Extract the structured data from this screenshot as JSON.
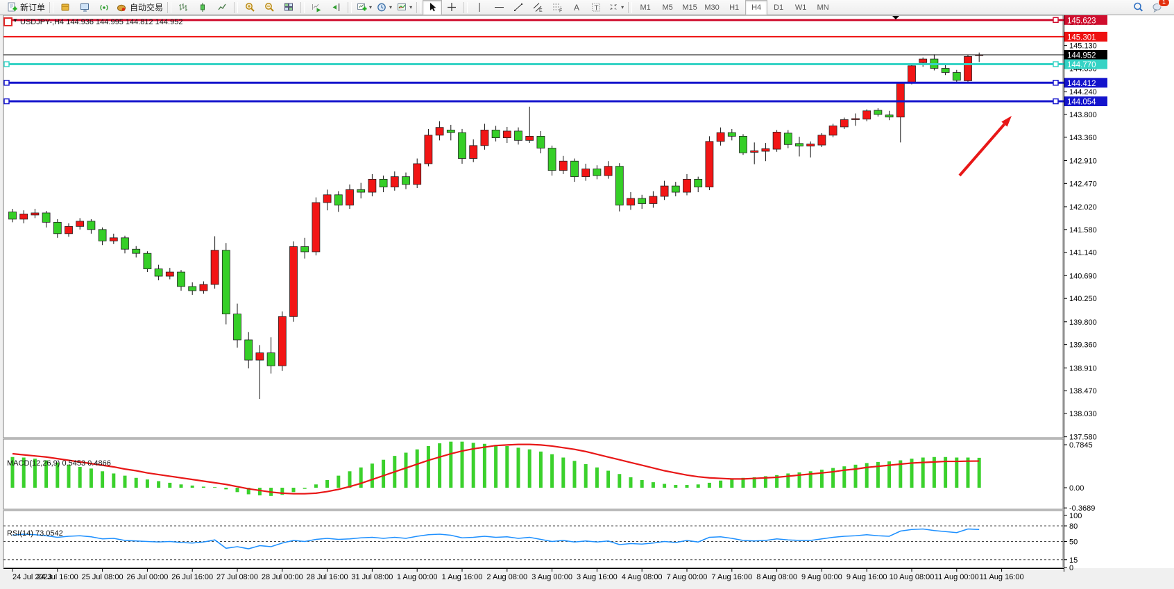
{
  "toolbar": {
    "groups": [
      {
        "name": "order",
        "items": [
          {
            "name": "new-order",
            "icon": "neworder",
            "label": "新订单"
          }
        ]
      },
      {
        "name": "panels",
        "items": [
          {
            "name": "market-watch",
            "icon": "goldbox"
          },
          {
            "name": "data-window",
            "icon": "monitor"
          },
          {
            "name": "signals",
            "icon": "signal"
          },
          {
            "name": "auto-trading",
            "icon": "pot",
            "label": "自动交易"
          }
        ]
      },
      {
        "name": "chart-types",
        "items": [
          {
            "name": "bar-chart",
            "icon": "barchart"
          },
          {
            "name": "candlestick-chart",
            "icon": "candle"
          },
          {
            "name": "line-chart",
            "icon": "linechart"
          }
        ]
      },
      {
        "name": "zoom",
        "items": [
          {
            "name": "zoom-in",
            "icon": "zoomin"
          },
          {
            "name": "zoom-out",
            "icon": "zoomout"
          },
          {
            "name": "tile-windows",
            "icon": "tiles"
          }
        ]
      },
      {
        "name": "scroll",
        "items": [
          {
            "name": "auto-scroll",
            "icon": "autoscroll"
          },
          {
            "name": "chart-shift",
            "icon": "chartshift"
          }
        ]
      },
      {
        "name": "new-objects",
        "items": [
          {
            "name": "new-chart",
            "icon": "newchart",
            "dropdown": true
          },
          {
            "name": "periods",
            "icon": "clock",
            "dropdown": true
          },
          {
            "name": "templates",
            "icon": "template",
            "dropdown": true
          }
        ]
      },
      {
        "name": "cursor-tools",
        "items": [
          {
            "name": "cursor",
            "icon": "cursor",
            "active": true
          },
          {
            "name": "crosshair",
            "icon": "crosshair"
          }
        ]
      },
      {
        "name": "draw-tools",
        "items": [
          {
            "name": "vertical-line",
            "icon": "vline"
          },
          {
            "name": "horizontal-line",
            "icon": "hline"
          },
          {
            "name": "trendline",
            "icon": "trend"
          },
          {
            "name": "equidistant-channel",
            "icon": "channel"
          },
          {
            "name": "fibonacci",
            "icon": "fibo"
          },
          {
            "name": "text",
            "icon": "textA"
          },
          {
            "name": "text-label",
            "icon": "textT"
          },
          {
            "name": "arrows",
            "icon": "stamp",
            "dropdown": true
          }
        ]
      },
      {
        "name": "timeframes",
        "items": [
          {
            "name": "tf-m1",
            "label": "M1"
          },
          {
            "name": "tf-m5",
            "label": "M5"
          },
          {
            "name": "tf-m15",
            "label": "M15"
          },
          {
            "name": "tf-m30",
            "label": "M30"
          },
          {
            "name": "tf-h1",
            "label": "H1"
          },
          {
            "name": "tf-h4",
            "label": "H4",
            "active": true
          },
          {
            "name": "tf-d1",
            "label": "D1"
          },
          {
            "name": "tf-w1",
            "label": "W1"
          },
          {
            "name": "tf-mn",
            "label": "MN"
          }
        ]
      },
      {
        "name": "right",
        "items": [
          {
            "name": "search",
            "icon": "search"
          },
          {
            "name": "chat",
            "icon": "chat",
            "badge": "1"
          }
        ]
      }
    ]
  },
  "chart": {
    "title": "USDJPY-,H4  144.936 144.995 144.812 144.952",
    "title_marker": "▼",
    "macd_label": "MACD(12,26,9) 0.5453 0.4866",
    "rsi_label": "RSI(14) 73.0542"
  },
  "chart_data": {
    "type": "candlestick",
    "symbol": "USDJPY-",
    "timeframe": "H4",
    "start_time": "24 Jul 2023 00:00",
    "current_bar": {
      "open": 144.936,
      "high": 144.995,
      "low": 144.812,
      "close": 144.952
    },
    "colors": {
      "bull": "#f21515",
      "bear": "#35cf27",
      "wick": "#111111",
      "macd_hist": "#3bd12c",
      "macd_signal": "#e81717",
      "rsi_line": "#1e90ff",
      "arrow": "#e81717",
      "bid_line": "#000000"
    },
    "price_ticks": [
      "145.580",
      "145.130",
      "144.690",
      "144.240",
      "143.800",
      "143.360",
      "142.910",
      "142.470",
      "142.020",
      "141.580",
      "141.140",
      "140.690",
      "140.250",
      "139.800",
      "139.360",
      "138.910",
      "138.470",
      "138.030",
      "137.580"
    ],
    "time_labels": [
      "24 Jul 2023",
      "24 Jul 16:00",
      "25 Jul 08:00",
      "26 Jul 00:00",
      "26 Jul 16:00",
      "27 Jul 08:00",
      "28 Jul 00:00",
      "28 Jul 16:00",
      "31 Jul 08:00",
      "1 Aug 00:00",
      "1 Aug 16:00",
      "2 Aug 08:00",
      "3 Aug 00:00",
      "3 Aug 16:00",
      "4 Aug 08:00",
      "7 Aug 00:00",
      "7 Aug 16:00",
      "8 Aug 08:00",
      "9 Aug 00:00",
      "9 Aug 16:00",
      "10 Aug 08:00",
      "11 Aug 00:00",
      "11 Aug 16:00"
    ],
    "hlines": [
      {
        "price": 145.623,
        "label": "145.623",
        "color": "#cf0e2e",
        "width": 3,
        "handles": [
          "right"
        ]
      },
      {
        "price": 145.301,
        "label": "145.301",
        "color": "#ee1111",
        "width": 2,
        "handles": []
      },
      {
        "price": 144.952,
        "label": "144.952",
        "color": "#000000",
        "width": 1,
        "handles": [],
        "role": "current-price"
      },
      {
        "price": 144.77,
        "label": "144.770",
        "color": "#35d3c5",
        "width": 3,
        "handles": [
          "left",
          "right"
        ]
      },
      {
        "price": 144.412,
        "label": "144.412",
        "color": "#1414cc",
        "width": 3,
        "handles": [
          "left",
          "right"
        ]
      },
      {
        "price": 144.054,
        "label": "144.054",
        "color": "#1414cc",
        "width": 3,
        "handles": [
          "left",
          "right"
        ]
      }
    ],
    "candles": [
      [
        141.92,
        141.98,
        141.72,
        141.78
      ],
      [
        141.78,
        141.95,
        141.7,
        141.88
      ],
      [
        141.86,
        141.98,
        141.8,
        141.9
      ],
      [
        141.9,
        141.94,
        141.62,
        141.72
      ],
      [
        141.72,
        141.78,
        141.42,
        141.5
      ],
      [
        141.5,
        141.7,
        141.44,
        141.64
      ],
      [
        141.64,
        141.8,
        141.58,
        141.74
      ],
      [
        141.74,
        141.78,
        141.5,
        141.58
      ],
      [
        141.58,
        141.62,
        141.28,
        141.36
      ],
      [
        141.36,
        141.5,
        141.3,
        141.42
      ],
      [
        141.42,
        141.46,
        141.12,
        141.2
      ],
      [
        141.2,
        141.26,
        141.04,
        141.12
      ],
      [
        141.12,
        141.16,
        140.76,
        140.82
      ],
      [
        140.82,
        140.9,
        140.6,
        140.68
      ],
      [
        140.68,
        140.84,
        140.62,
        140.76
      ],
      [
        140.76,
        140.8,
        140.4,
        140.48
      ],
      [
        140.48,
        140.56,
        140.32,
        140.4
      ],
      [
        140.4,
        140.58,
        140.34,
        140.52
      ],
      [
        140.52,
        141.45,
        140.44,
        141.18
      ],
      [
        141.18,
        141.32,
        139.75,
        139.95
      ],
      [
        139.95,
        140.15,
        139.3,
        139.45
      ],
      [
        139.45,
        139.6,
        138.9,
        139.06
      ],
      [
        139.06,
        139.35,
        138.31,
        139.2
      ],
      [
        139.2,
        139.5,
        138.8,
        138.95
      ],
      [
        138.95,
        140.0,
        138.85,
        139.9
      ],
      [
        139.9,
        141.35,
        139.8,
        141.25
      ],
      [
        141.25,
        141.42,
        141.02,
        141.15
      ],
      [
        141.15,
        142.2,
        141.08,
        142.1
      ],
      [
        142.1,
        142.35,
        141.95,
        142.25
      ],
      [
        142.25,
        142.32,
        141.92,
        142.05
      ],
      [
        142.05,
        142.45,
        141.98,
        142.35
      ],
      [
        142.35,
        142.48,
        142.18,
        142.3
      ],
      [
        142.3,
        142.65,
        142.22,
        142.55
      ],
      [
        142.55,
        142.62,
        142.3,
        142.4
      ],
      [
        142.4,
        142.7,
        142.33,
        142.6
      ],
      [
        142.6,
        142.68,
        142.36,
        142.45
      ],
      [
        142.45,
        142.95,
        142.38,
        142.85
      ],
      [
        142.85,
        143.52,
        142.8,
        143.4
      ],
      [
        143.4,
        143.67,
        143.3,
        143.55
      ],
      [
        143.5,
        143.6,
        143.3,
        143.45
      ],
      [
        143.45,
        143.52,
        142.85,
        142.95
      ],
      [
        142.95,
        143.32,
        142.88,
        143.2
      ],
      [
        143.2,
        143.62,
        143.12,
        143.5
      ],
      [
        143.5,
        143.58,
        143.28,
        143.35
      ],
      [
        143.35,
        143.56,
        143.25,
        143.48
      ],
      [
        143.48,
        143.55,
        143.22,
        143.3
      ],
      [
        143.3,
        143.95,
        143.25,
        143.38
      ],
      [
        143.38,
        143.48,
        143.05,
        143.15
      ],
      [
        143.15,
        143.2,
        142.62,
        142.72
      ],
      [
        142.72,
        143.0,
        142.65,
        142.9
      ],
      [
        142.9,
        142.95,
        142.5,
        142.6
      ],
      [
        142.6,
        142.85,
        142.52,
        142.75
      ],
      [
        142.75,
        142.82,
        142.55,
        142.62
      ],
      [
        142.62,
        142.9,
        142.56,
        142.8
      ],
      [
        142.8,
        142.86,
        141.93,
        142.05
      ],
      [
        142.05,
        142.3,
        141.96,
        142.18
      ],
      [
        142.18,
        142.25,
        141.98,
        142.08
      ],
      [
        142.08,
        142.32,
        142.0,
        142.22
      ],
      [
        142.22,
        142.52,
        142.15,
        142.42
      ],
      [
        142.42,
        142.5,
        142.22,
        142.3
      ],
      [
        142.3,
        142.65,
        142.24,
        142.55
      ],
      [
        142.55,
        142.6,
        142.3,
        142.4
      ],
      [
        142.4,
        143.38,
        142.34,
        143.28
      ],
      [
        143.28,
        143.55,
        143.2,
        143.45
      ],
      [
        143.45,
        143.52,
        143.3,
        143.38
      ],
      [
        143.38,
        143.42,
        143.02,
        143.06
      ],
      [
        143.07,
        143.26,
        142.84,
        143.1
      ],
      [
        143.09,
        143.25,
        142.9,
        143.14
      ],
      [
        143.13,
        143.5,
        143.08,
        143.46
      ],
      [
        143.44,
        143.5,
        143.15,
        143.22
      ],
      [
        143.24,
        143.37,
        142.99,
        143.19
      ],
      [
        143.19,
        143.28,
        142.97,
        143.23
      ],
      [
        143.21,
        143.44,
        143.17,
        143.4
      ],
      [
        143.4,
        143.62,
        143.36,
        143.58
      ],
      [
        143.56,
        143.74,
        143.52,
        143.7
      ],
      [
        143.7,
        143.82,
        143.58,
        143.72
      ],
      [
        143.71,
        143.9,
        143.67,
        143.87
      ],
      [
        143.88,
        143.92,
        143.76,
        143.8
      ],
      [
        143.79,
        143.87,
        143.69,
        143.75
      ],
      [
        143.75,
        144.42,
        143.26,
        144.4
      ],
      [
        144.41,
        144.78,
        144.38,
        144.74
      ],
      [
        144.8,
        144.9,
        144.72,
        144.87
      ],
      [
        144.87,
        144.96,
        144.65,
        144.69
      ],
      [
        144.69,
        144.75,
        144.56,
        144.61
      ],
      [
        144.61,
        144.66,
        144.42,
        144.46
      ],
      [
        144.45,
        144.95,
        144.43,
        144.92
      ],
      [
        144.936,
        144.995,
        144.812,
        144.952
      ]
    ],
    "indicators": {
      "macd": {
        "label": "MACD(12,26,9)",
        "value_main": 0.5453,
        "value_signal": 0.4866,
        "y_ticks": [
          "0.7845",
          "0.00",
          "-0.3689"
        ],
        "histogram": [
          0.56,
          0.55,
          0.53,
          0.5,
          0.46,
          0.42,
          0.38,
          0.35,
          0.3,
          0.26,
          0.22,
          0.18,
          0.15,
          0.12,
          0.09,
          0.06,
          0.04,
          0.02,
          0.01,
          -0.03,
          -0.08,
          -0.12,
          -0.14,
          -0.15,
          -0.13,
          -0.08,
          -0.02,
          0.06,
          0.14,
          0.22,
          0.3,
          0.37,
          0.44,
          0.51,
          0.58,
          0.64,
          0.7,
          0.76,
          0.81,
          0.84,
          0.84,
          0.82,
          0.8,
          0.78,
          0.76,
          0.73,
          0.7,
          0.66,
          0.61,
          0.55,
          0.49,
          0.43,
          0.37,
          0.31,
          0.25,
          0.19,
          0.14,
          0.1,
          0.07,
          0.05,
          0.05,
          0.06,
          0.09,
          0.13,
          0.16,
          0.18,
          0.19,
          0.21,
          0.23,
          0.26,
          0.28,
          0.3,
          0.33,
          0.36,
          0.39,
          0.42,
          0.45,
          0.47,
          0.48,
          0.5,
          0.53,
          0.55,
          0.56,
          0.56,
          0.55,
          0.55,
          0.5453
        ],
        "signal": [
          0.62,
          0.6,
          0.58,
          0.56,
          0.53,
          0.5,
          0.47,
          0.44,
          0.41,
          0.38,
          0.34,
          0.31,
          0.27,
          0.24,
          0.21,
          0.18,
          0.15,
          0.12,
          0.09,
          0.06,
          0.02,
          -0.02,
          -0.05,
          -0.08,
          -0.1,
          -0.11,
          -0.11,
          -0.1,
          -0.07,
          -0.03,
          0.02,
          0.08,
          0.15,
          0.22,
          0.29,
          0.36,
          0.43,
          0.5,
          0.56,
          0.62,
          0.67,
          0.71,
          0.74,
          0.77,
          0.78,
          0.79,
          0.79,
          0.78,
          0.76,
          0.73,
          0.7,
          0.66,
          0.61,
          0.56,
          0.51,
          0.46,
          0.41,
          0.36,
          0.31,
          0.27,
          0.23,
          0.2,
          0.18,
          0.17,
          0.16,
          0.16,
          0.17,
          0.18,
          0.19,
          0.21,
          0.23,
          0.25,
          0.27,
          0.29,
          0.32,
          0.34,
          0.37,
          0.39,
          0.41,
          0.43,
          0.45,
          0.46,
          0.47,
          0.48,
          0.48,
          0.485,
          0.4866
        ]
      },
      "rsi": {
        "label": "RSI(14)",
        "value": 73.0542,
        "levels": [
          80,
          50,
          15
        ],
        "y_ticks": [
          "100",
          "80",
          "50",
          "15",
          "0"
        ],
        "range": [
          0,
          100
        ],
        "series": [
          62,
          64,
          63,
          61,
          58,
          60,
          61,
          59,
          55,
          56,
          52,
          51,
          50,
          49,
          50,
          48,
          47,
          49,
          53,
          37,
          40,
          36,
          42,
          40,
          47,
          52,
          50,
          54,
          56,
          54,
          55,
          57,
          58,
          56,
          58,
          56,
          60,
          63,
          64,
          62,
          57,
          58,
          60,
          58,
          59,
          56,
          58,
          54,
          50,
          52,
          49,
          51,
          49,
          51,
          44,
          46,
          45,
          47,
          50,
          48,
          52,
          49,
          58,
          59,
          56,
          52,
          51,
          52,
          55,
          53,
          52,
          52,
          55,
          58,
          60,
          61,
          63,
          61,
          60,
          70,
          73,
          74,
          71,
          69,
          67,
          74,
          73.05
        ],
        "line_color": "#1e90ff"
      }
    },
    "arrow_annotation": {
      "from": [
        1383,
        253
      ],
      "to": [
        1458,
        167
      ],
      "color": "#e81717",
      "width": 4
    }
  }
}
